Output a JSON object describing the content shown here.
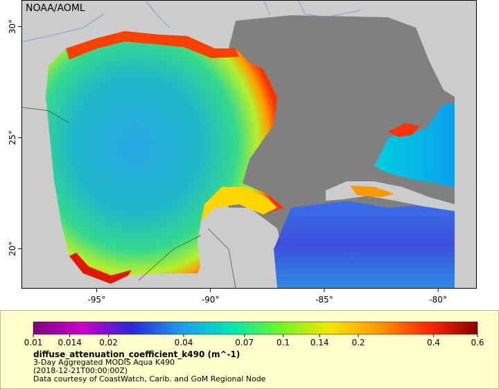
{
  "map": {
    "credit": "NOAA/AOML",
    "lon_ticks": [
      {
        "value": -95,
        "label": "-95°"
      },
      {
        "value": -90,
        "label": "-90°"
      },
      {
        "value": -85,
        "label": "-85°"
      },
      {
        "value": -80,
        "label": "-80°"
      }
    ],
    "lat_ticks": [
      {
        "value": 30,
        "label": "30°"
      },
      {
        "value": 25,
        "label": "25°"
      },
      {
        "value": 20,
        "label": "20°"
      }
    ],
    "lon_range": [
      -98.3,
      -78.3
    ],
    "lat_range": [
      18.2,
      31.2
    ],
    "colors": {
      "land": "#cccccc",
      "land_masked": "#808080",
      "border": "#444444",
      "river": "#6699cc",
      "frame": "#000000"
    }
  },
  "legend": {
    "variable": "diffuse_attenuation_coefficient_k490 (m^-1)",
    "line1": "3-Day Aggregated MODIS Aqua K490",
    "line2": "(2018-12-21T00:00:00Z)",
    "line3": "Data courtesy of CoastWatch, Carib. and GoM Regional Node",
    "scale": "log",
    "ticks": [
      "0.01",
      "0.014",
      "0.02",
      "0.04",
      "0.07",
      "0.1",
      "0.14",
      "0.2",
      "0.4",
      "0.6"
    ],
    "colors": [
      "#7b007b",
      "#cc00cc",
      "#2828d8",
      "#1e9bef",
      "#00e6b4",
      "#6ef52a",
      "#f5e600",
      "#ff9900",
      "#ff2a00",
      "#8b0000"
    ],
    "background": "#ffffcc"
  }
}
